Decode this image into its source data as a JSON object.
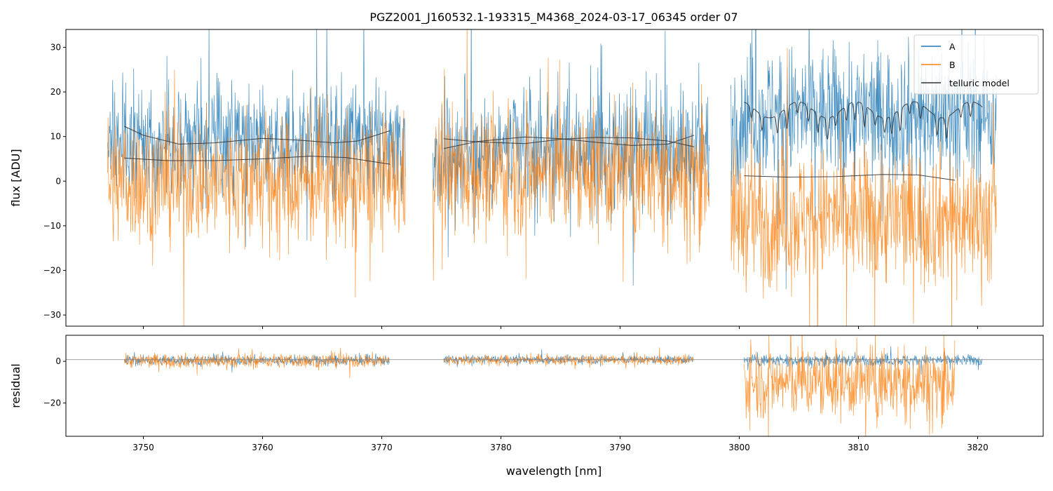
{
  "chart_data": {
    "type": "line",
    "title": "PGZ2001_J160532.1-193315_M4368_2024-03-17_06345  order 07",
    "xlabel": "wavelength [nm]",
    "x_range": [
      3743.5,
      3825.5
    ],
    "x_ticks": [
      3750,
      3760,
      3770,
      3780,
      3790,
      3800,
      3810,
      3820
    ],
    "x_tick_labels": [
      "3750",
      "3760",
      "3770",
      "3780",
      "3790",
      "3800",
      "3810",
      "3820"
    ],
    "colors": {
      "A": "#1f77b4",
      "B": "#ff7f0e",
      "telluric": "#333333",
      "zero_line": "#808080"
    },
    "panels": [
      {
        "name": "flux",
        "ylabel": "flux [ADU]",
        "ylim": [
          -32.5,
          34
        ],
        "y_ticks": [
          -30,
          -20,
          -10,
          0,
          10,
          20,
          30
        ],
        "y_tick_labels": [
          "−30",
          "−20",
          "−10",
          "0",
          "10",
          "20",
          "30"
        ],
        "legend": {
          "position": "top-right",
          "entries": [
            "A",
            "B",
            "telluric model"
          ]
        },
        "series": [
          {
            "name": "A",
            "kind": "noisy-spectrum",
            "segments": [
              {
                "x0": 3747.0,
                "x1": 3772.0,
                "mean": 9,
                "spread": 11
              },
              {
                "x0": 3774.3,
                "x1": 3797.5,
                "mean": 7,
                "spread": 12
              },
              {
                "x0": 3799.3,
                "x1": 3821.6,
                "mean": 15,
                "spread": 14
              }
            ]
          },
          {
            "name": "B",
            "kind": "noisy-spectrum",
            "segments": [
              {
                "x0": 3747.0,
                "x1": 3772.0,
                "mean": 0,
                "spread": 13
              },
              {
                "x0": 3774.3,
                "x1": 3797.5,
                "mean": 2,
                "spread": 13
              },
              {
                "x0": 3799.3,
                "x1": 3821.6,
                "mean": -8,
                "spread": 14
              }
            ]
          },
          {
            "name": "telluric model A",
            "kind": "model",
            "segments": [
              {
                "x": [
                  3748.4,
                  3750,
                  3753,
                  3756,
                  3760,
                  3763,
                  3766,
                  3768,
                  3770.7
                ],
                "y": [
                  12.3,
                  10.3,
                  8.3,
                  8.6,
                  9.6,
                  9.2,
                  8.6,
                  9.0,
                  11.3
                ]
              },
              {
                "x": [
                  3775.2,
                  3778,
                  3782,
                  3785,
                  3788,
                  3791,
                  3794,
                  3796.2
                ],
                "y": [
                  9.5,
                  8.8,
                  8.4,
                  9.4,
                  9.8,
                  9.7,
                  9.0,
                  7.7
                ]
              },
              {
                "x": [
                  3800.4,
                  3820.4
                ],
                "y": [
                  16,
                  16
                ],
                "with_lines": true
              }
            ]
          },
          {
            "name": "telluric model B",
            "kind": "model",
            "segments": [
              {
                "x": [
                  3748.4,
                  3752,
                  3756,
                  3760,
                  3764,
                  3767,
                  3770.7
                ],
                "y": [
                  5.2,
                  4.6,
                  4.6,
                  5.0,
                  5.6,
                  5.3,
                  3.8
                ]
              },
              {
                "x": [
                  3775.2,
                  3778,
                  3782,
                  3785,
                  3788,
                  3791,
                  3794,
                  3796.2
                ],
                "y": [
                  7.3,
                  8.9,
                  9.9,
                  9.5,
                  8.7,
                  8.0,
                  8.3,
                  10.3
                ]
              },
              {
                "x": [
                  3800.4,
                  3804,
                  3808,
                  3812,
                  3815,
                  3818.1
                ],
                "y": [
                  1.2,
                  0.9,
                  1.0,
                  1.5,
                  1.4,
                  0.2
                ]
              }
            ]
          }
        ]
      },
      {
        "name": "residual",
        "ylabel": "residual",
        "ylim": [
          -36,
          12.5
        ],
        "y_ticks": [
          -20,
          0
        ],
        "y_tick_labels": [
          "−20",
          "0"
        ],
        "zero_line": 0.8,
        "series": [
          {
            "name": "A",
            "kind": "noisy-spectrum",
            "segments": [
              {
                "x0": 3748.4,
                "x1": 3770.7,
                "mean": 0.5,
                "spread": 2.2
              },
              {
                "x0": 3775.2,
                "x1": 3796.2,
                "mean": 0.8,
                "spread": 1.8
              },
              {
                "x0": 3800.4,
                "x1": 3820.4,
                "mean": 0.5,
                "spread": 2.5
              }
            ]
          },
          {
            "name": "B",
            "kind": "noisy-spectrum",
            "segments": [
              {
                "x0": 3748.4,
                "x1": 3770.7,
                "mean": 0.3,
                "spread": 3.2
              },
              {
                "x0": 3775.2,
                "x1": 3796.2,
                "mean": 0.6,
                "spread": 2.2
              },
              {
                "x0": 3800.4,
                "x1": 3818.1,
                "mean": -10,
                "spread": 16
              }
            ]
          }
        ]
      }
    ]
  }
}
